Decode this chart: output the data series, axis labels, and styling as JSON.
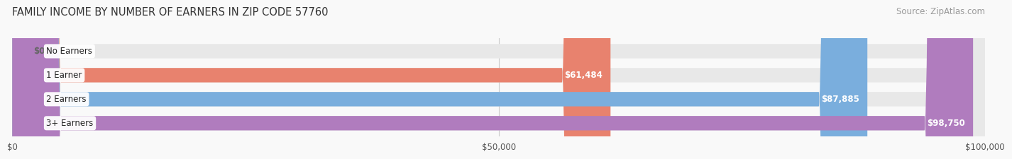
{
  "title": "FAMILY INCOME BY NUMBER OF EARNERS IN ZIP CODE 57760",
  "source": "Source: ZipAtlas.com",
  "categories": [
    "No Earners",
    "1 Earner",
    "2 Earners",
    "3+ Earners"
  ],
  "values": [
    0,
    61484,
    87885,
    98750
  ],
  "labels": [
    "$0",
    "$61,484",
    "$87,885",
    "$98,750"
  ],
  "bar_colors": [
    "#f0c882",
    "#e8826e",
    "#7aaedd",
    "#b07cbe"
  ],
  "bar_bg_color": "#e8e8e8",
  "x_max": 100000,
  "x_ticks": [
    0,
    50000,
    100000
  ],
  "x_tick_labels": [
    "$0",
    "$50,000",
    "$100,000"
  ],
  "title_fontsize": 10.5,
  "source_fontsize": 8.5,
  "bar_label_fontsize": 8.5,
  "cat_label_fontsize": 8.5,
  "background_color": "#f9f9f9",
  "bar_height": 0.6
}
